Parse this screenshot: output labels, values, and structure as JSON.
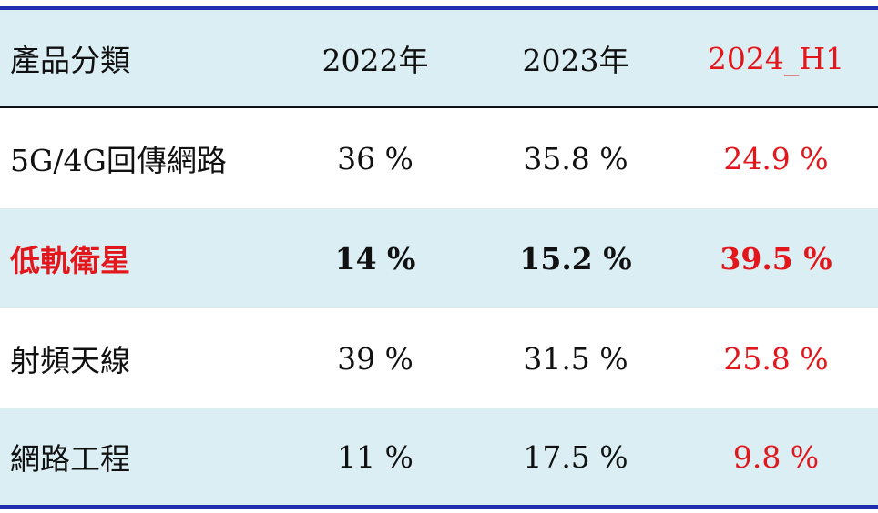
{
  "table": {
    "header": [
      "產品分類",
      "2022年",
      "2023年",
      "2024_H1"
    ],
    "rows": [
      [
        "5G/4G回傳網路",
        "36 %",
        "35.8 %",
        "24.9 %"
      ],
      [
        "低軌衛星",
        "14 %",
        "15.2 %",
        "39.5 %"
      ],
      [
        "射頻天線",
        "39 %",
        "31.5 %",
        "25.8 %"
      ],
      [
        "網路工程",
        "11 %",
        "17.5 %",
        "9.8 %"
      ]
    ]
  }
}
